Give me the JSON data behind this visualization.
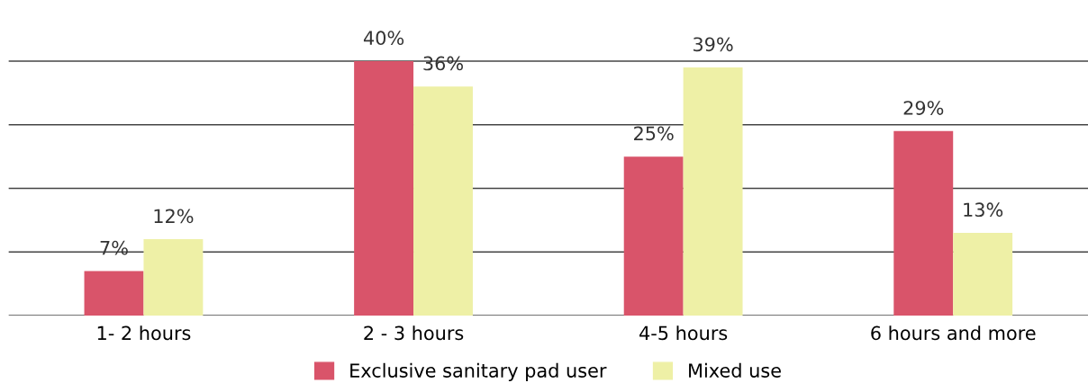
{
  "chart_data": {
    "type": "bar",
    "categories": [
      "1- 2 hours",
      "2 - 3 hours",
      "4-5 hours",
      "6 hours and more"
    ],
    "series": [
      {
        "name": "Exclusive sanitary pad user",
        "color": "#d9546a",
        "values": [
          7,
          40,
          25,
          29
        ],
        "value_labels": [
          "7%",
          "40%",
          "25%",
          "29%"
        ]
      },
      {
        "name": "Mixed use",
        "color": "#eef0a6",
        "values": [
          12,
          36,
          39,
          13
        ],
        "value_labels": [
          "12%",
          "36%",
          "39%",
          "13%"
        ]
      }
    ],
    "tick_labels": "x",
    "grid": "y",
    "legend": "bottom"
  }
}
